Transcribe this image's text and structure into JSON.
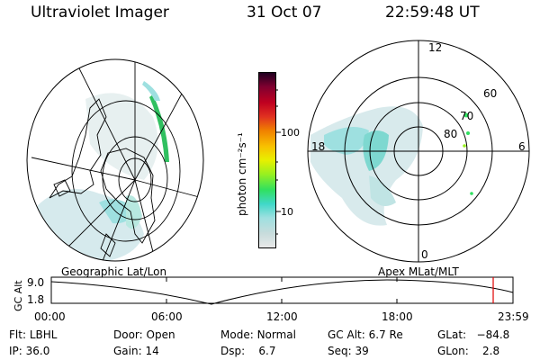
{
  "header": {
    "title": "Ultraviolet Imager",
    "date": "31 Oct 07",
    "time": "22:59:48 UT"
  },
  "geo_panel": {
    "caption": "Geographic Lat/Lon"
  },
  "apex_panel": {
    "caption": "Apex  MLat/MLT",
    "mlt_labels": {
      "top": "12",
      "left": "18",
      "right": "6",
      "bottom": "0"
    },
    "lat_labels": [
      "60",
      "70",
      "80"
    ]
  },
  "colorbar": {
    "unit_label": "photon cm⁻²s⁻¹",
    "ticks": [
      "100",
      "10"
    ],
    "colors": [
      "#e8e8e8",
      "#c8dcdc",
      "#9ee0e0",
      "#40d8c8",
      "#30e060",
      "#98f020",
      "#e8f000",
      "#f8c000",
      "#f08000",
      "#e03020",
      "#c00020",
      "#800030",
      "#200020"
    ]
  },
  "timeline": {
    "axis_label": "GC Alt",
    "y_ticks": [
      "9.0",
      "1.8"
    ],
    "x_ticks": [
      "00:00",
      "06:00",
      "12:00",
      "18:00",
      "23:59"
    ],
    "marker_color": "#e00000"
  },
  "status": {
    "filter": {
      "label": "Flt:",
      "value": "LBHL"
    },
    "ip": {
      "label": "IP:",
      "value": "36.0"
    },
    "door": {
      "label": "Door:",
      "value": "Open"
    },
    "gain": {
      "label": "Gain:",
      "value": "14"
    },
    "mode": {
      "label": "Mode:",
      "value": "Normal"
    },
    "dsp": {
      "label": "Dsp:",
      "value": "6.7"
    },
    "gc_alt": {
      "label": "GC Alt:",
      "value": "6.7 Re"
    },
    "seq": {
      "label": "Seq:",
      "value": "39"
    },
    "glat": {
      "label": "GLat:",
      "value": "−84.8"
    },
    "glon": {
      "label": "GLon:",
      "value": "2.8"
    }
  }
}
